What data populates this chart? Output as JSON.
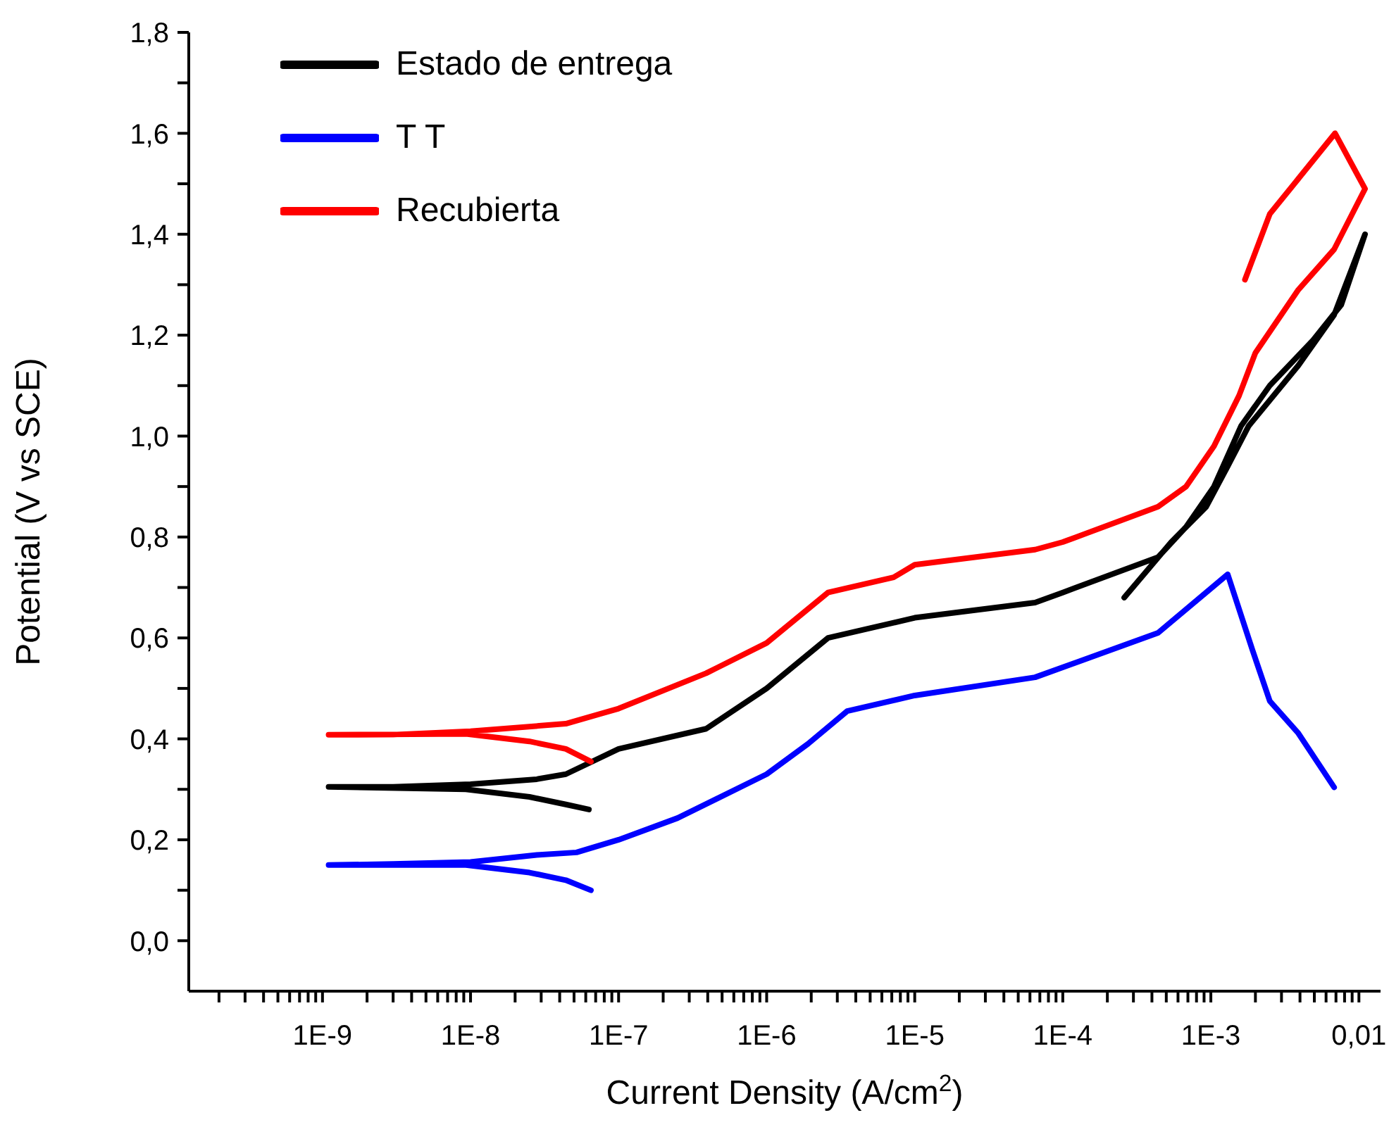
{
  "chart_data": {
    "type": "line",
    "xlabel": "Current Density (A/cm$^{2}$)",
    "ylabel": "Potential (V vs SCE)",
    "log": "x",
    "legend": "top left",
    "grid": false,
    "xlim": [
      1.25e-10,
      0.014
    ],
    "ylim": [
      -0.1,
      1.8
    ],
    "xticks": [
      {
        "value": 2e-10,
        "label": null
      },
      {
        "value": 3e-10,
        "label": null
      },
      {
        "value": 4e-10,
        "label": null
      },
      {
        "value": 5e-10,
        "label": null
      },
      {
        "value": 6e-10,
        "label": null
      },
      {
        "value": 7e-10,
        "label": null
      },
      {
        "value": 8e-10,
        "label": null
      },
      {
        "value": 9e-10,
        "label": null
      },
      {
        "value": 1e-09,
        "label": "1E-9"
      },
      {
        "value": 2e-09,
        "label": null
      },
      {
        "value": 3e-09,
        "label": null
      },
      {
        "value": 4e-09,
        "label": null
      },
      {
        "value": 5e-09,
        "label": null
      },
      {
        "value": 6e-09,
        "label": null
      },
      {
        "value": 7e-09,
        "label": null
      },
      {
        "value": 8e-09,
        "label": null
      },
      {
        "value": 9e-09,
        "label": null
      },
      {
        "value": 1e-08,
        "label": "1E-8"
      },
      {
        "value": 2e-08,
        "label": null
      },
      {
        "value": 3e-08,
        "label": null
      },
      {
        "value": 4e-08,
        "label": null
      },
      {
        "value": 5e-08,
        "label": null
      },
      {
        "value": 6e-08,
        "label": null
      },
      {
        "value": 7e-08,
        "label": null
      },
      {
        "value": 8e-08,
        "label": null
      },
      {
        "value": 9e-08,
        "label": null
      },
      {
        "value": 1e-07,
        "label": "1E-7"
      },
      {
        "value": 2e-07,
        "label": null
      },
      {
        "value": 3e-07,
        "label": null
      },
      {
        "value": 4e-07,
        "label": null
      },
      {
        "value": 5e-07,
        "label": null
      },
      {
        "value": 6e-07,
        "label": null
      },
      {
        "value": 7e-07,
        "label": null
      },
      {
        "value": 8e-07,
        "label": null
      },
      {
        "value": 9e-07,
        "label": null
      },
      {
        "value": 1e-06,
        "label": "1E-6"
      },
      {
        "value": 2e-06,
        "label": null
      },
      {
        "value": 3e-06,
        "label": null
      },
      {
        "value": 4e-06,
        "label": null
      },
      {
        "value": 5e-06,
        "label": null
      },
      {
        "value": 6e-06,
        "label": null
      },
      {
        "value": 7e-06,
        "label": null
      },
      {
        "value": 8e-06,
        "label": null
      },
      {
        "value": 9e-06,
        "label": null
      },
      {
        "value": 1e-05,
        "label": "1E-5"
      },
      {
        "value": 2e-05,
        "label": null
      },
      {
        "value": 3e-05,
        "label": null
      },
      {
        "value": 4e-05,
        "label": null
      },
      {
        "value": 5e-05,
        "label": null
      },
      {
        "value": 6e-05,
        "label": null
      },
      {
        "value": 7e-05,
        "label": null
      },
      {
        "value": 8e-05,
        "label": null
      },
      {
        "value": 9e-05,
        "label": null
      },
      {
        "value": 0.0001,
        "label": "1E-4"
      },
      {
        "value": 0.0002,
        "label": null
      },
      {
        "value": 0.0003,
        "label": null
      },
      {
        "value": 0.0004,
        "label": null
      },
      {
        "value": 0.0005,
        "label": null
      },
      {
        "value": 0.0006,
        "label": null
      },
      {
        "value": 0.0007,
        "label": null
      },
      {
        "value": 0.0008,
        "label": null
      },
      {
        "value": 0.0009,
        "label": null
      },
      {
        "value": 0.001,
        "label": "1E-3"
      },
      {
        "value": 0.002,
        "label": null
      },
      {
        "value": 0.003,
        "label": null
      },
      {
        "value": 0.004,
        "label": null
      },
      {
        "value": 0.005,
        "label": null
      },
      {
        "value": 0.006,
        "label": null
      },
      {
        "value": 0.007,
        "label": null
      },
      {
        "value": 0.008,
        "label": null
      },
      {
        "value": 0.009,
        "label": null
      },
      {
        "value": 0.01,
        "label": "0,01"
      }
    ],
    "yticks": [
      {
        "value": 0,
        "label": "0,0"
      },
      {
        "value": 0.1,
        "label": null
      },
      {
        "value": 0.2,
        "label": "0,2"
      },
      {
        "value": 0.3,
        "label": null
      },
      {
        "value": 0.4,
        "label": "0,4"
      },
      {
        "value": 0.5,
        "label": null
      },
      {
        "value": 0.6,
        "label": "0,6"
      },
      {
        "value": 0.7,
        "label": null
      },
      {
        "value": 0.8,
        "label": "0,8"
      },
      {
        "value": 0.9,
        "label": null
      },
      {
        "value": 1.0,
        "label": "1,0"
      },
      {
        "value": 1.1,
        "label": null
      },
      {
        "value": 1.2,
        "label": "1,2"
      },
      {
        "value": 1.3,
        "label": null
      },
      {
        "value": 1.4,
        "label": "1,4"
      },
      {
        "value": 1.5,
        "label": null
      },
      {
        "value": 1.6,
        "label": "1,6"
      },
      {
        "value": 1.7,
        "label": null
      },
      {
        "value": 1.8,
        "label": "1,8"
      }
    ],
    "series": [
      {
        "name": "Estado de entrega",
        "color": "#000000",
        "x": [
          6.3e-08,
          4.4e-08,
          2.5e-08,
          9.3e-09,
          1.1e-09,
          3e-09,
          1e-08,
          2.8e-08,
          4.4e-08,
          1e-07,
          3.9e-07,
          1e-06,
          2.6e-06,
          7.2e-06,
          1e-05,
          6.5e-05,
          0.0001,
          0.00044,
          0.00068,
          0.00105,
          0.0016,
          0.0025,
          0.0049,
          0.0076,
          0.011,
          0.0068,
          0.0039,
          0.0018,
          0.0013,
          0.00093,
          0.00054,
          0.00026
        ],
        "values": [
          0.26,
          0.27,
          0.285,
          0.3,
          0.305,
          0.305,
          0.31,
          0.32,
          0.33,
          0.38,
          0.42,
          0.5,
          0.6,
          0.63,
          0.64,
          0.67,
          0.69,
          0.76,
          0.82,
          0.9,
          1.02,
          1.1,
          1.19,
          1.26,
          1.4,
          1.24,
          1.14,
          1.02,
          0.94,
          0.86,
          0.79,
          0.68
        ]
      },
      {
        "name": "T T",
        "color": "#0000ff",
        "x": [
          6.5e-08,
          4.4e-08,
          2.5e-08,
          9.3e-09,
          1.1e-09,
          3e-09,
          1e-08,
          2.8e-08,
          5.2e-08,
          1e-07,
          2.5e-07,
          1e-06,
          1.9e-06,
          3.5e-06,
          1e-05,
          6.5e-05,
          0.00044,
          0.0013,
          0.0019,
          0.0025,
          0.0039,
          0.0068
        ],
        "values": [
          0.1,
          0.12,
          0.135,
          0.15,
          0.15,
          0.152,
          0.156,
          0.17,
          0.175,
          0.2,
          0.243,
          0.33,
          0.39,
          0.455,
          0.486,
          0.522,
          0.61,
          0.726,
          0.578,
          0.475,
          0.411,
          0.304
        ]
      },
      {
        "name": "Recubierta",
        "color": "#ff0000",
        "x": [
          6.5e-08,
          4.4e-08,
          2.5e-08,
          9.3e-09,
          1.1e-09,
          3e-09,
          1e-08,
          4.4e-08,
          1e-07,
          3.9e-07,
          1e-06,
          2.6e-06,
          7.2e-06,
          1e-05,
          6.5e-05,
          0.0001,
          0.00044,
          0.00068,
          0.00105,
          0.00155,
          0.002,
          0.0039,
          0.0068,
          0.011,
          0.0069,
          0.0039,
          0.0025,
          0.0017
        ],
        "values": [
          0.355,
          0.38,
          0.395,
          0.41,
          0.408,
          0.408,
          0.415,
          0.43,
          0.46,
          0.53,
          0.59,
          0.69,
          0.72,
          0.745,
          0.775,
          0.79,
          0.86,
          0.9,
          0.98,
          1.08,
          1.165,
          1.29,
          1.37,
          1.49,
          1.6,
          1.51,
          1.44,
          1.31
        ]
      }
    ]
  }
}
